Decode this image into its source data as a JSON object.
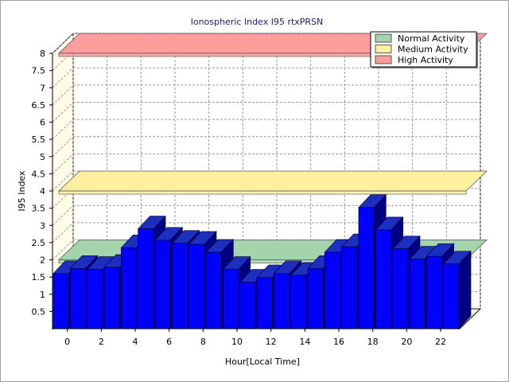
{
  "chart_data": {
    "type": "bar",
    "title": "Ionospheric Index I95 rtxPRSN",
    "xlabel": "Hour[Local Time]",
    "ylabel": "I95 Index",
    "x": [
      0,
      1,
      2,
      3,
      4,
      5,
      6,
      7,
      8,
      9,
      10,
      11,
      12,
      13,
      14,
      15,
      16,
      17,
      18,
      19,
      20,
      21,
      22,
      23
    ],
    "values": [
      1.6,
      1.75,
      1.72,
      1.78,
      2.35,
      2.9,
      2.57,
      2.48,
      2.45,
      2.22,
      1.72,
      1.35,
      1.48,
      1.6,
      1.55,
      1.75,
      2.22,
      2.38,
      3.52,
      2.87,
      2.32,
      2.02,
      2.1,
      1.88
    ],
    "x_ticks": [
      "0",
      "2",
      "4",
      "6",
      "8",
      "10",
      "12",
      "14",
      "16",
      "18",
      "20",
      "22"
    ],
    "y_ticks": [
      "0.5",
      "1",
      "1.5",
      "2",
      "2.5",
      "3",
      "3.5",
      "4",
      "4.5",
      "5",
      "5.5",
      "6",
      "6.5",
      "7",
      "7.5",
      "8"
    ],
    "ylim": [
      0,
      8
    ],
    "grid": true,
    "bar_color": "#0000ff",
    "threshold_bands": [
      {
        "name": "Normal Activity",
        "level": 2,
        "color": "#a4d4ac"
      },
      {
        "name": "Medium Activity",
        "level": 4,
        "color": "#fff0a0"
      },
      {
        "name": "High Activity",
        "level": 8,
        "color": "#ff9c9c"
      }
    ],
    "legend": {
      "placement": "top-right",
      "entries": [
        "Normal Activity",
        "Medium Activity",
        "High Activity"
      ]
    }
  }
}
